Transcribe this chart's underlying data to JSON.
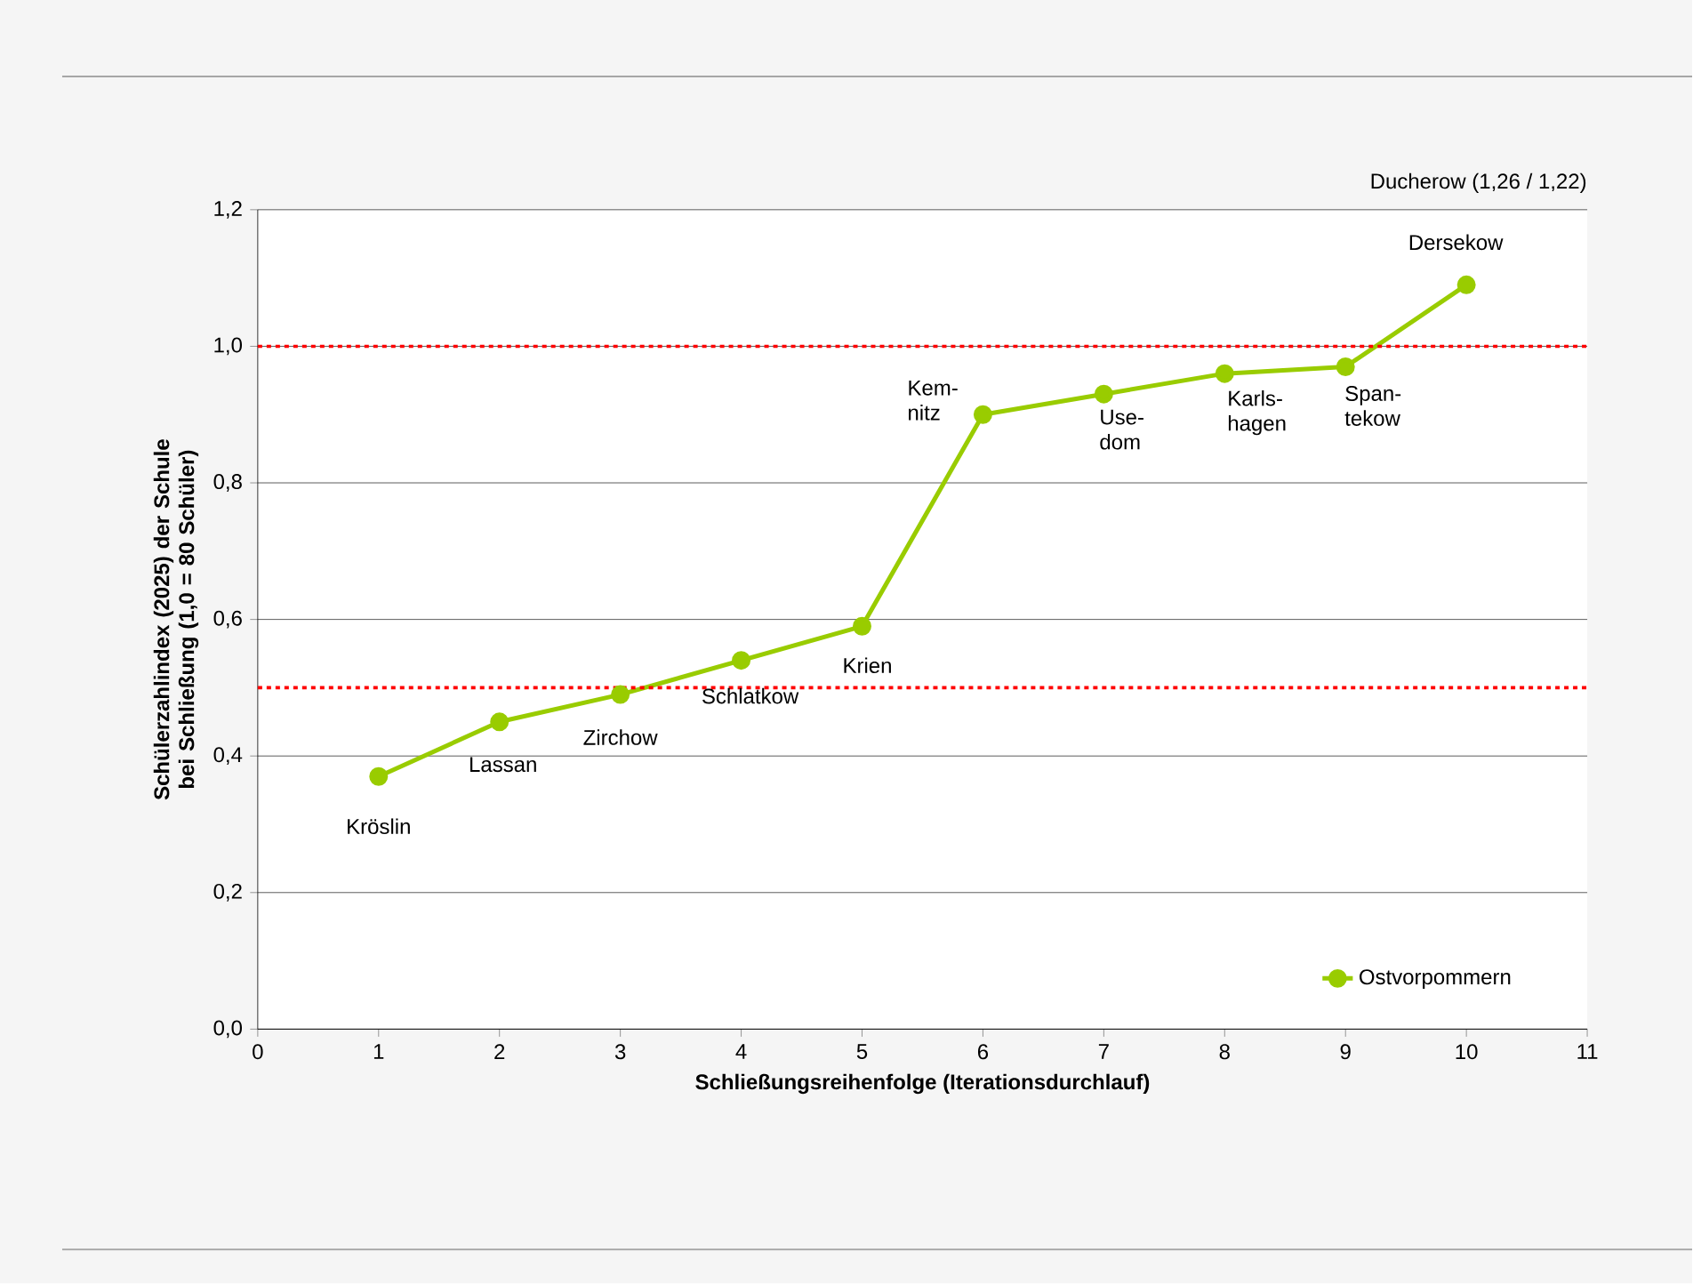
{
  "chart_data": {
    "type": "line",
    "xlabel": "Schließungsreihenfolge (Iterationsdurchlauf)",
    "ylabel": "Schülerzahlindex (2025) der Schule bei Schließung (1,0 = 80 Schüler)",
    "xlim": [
      0,
      11
    ],
    "xticks": [
      0,
      1,
      2,
      3,
      4,
      5,
      6,
      7,
      8,
      9,
      10,
      11
    ],
    "ylim": [
      0,
      1.2
    ],
    "yticks": [
      {
        "value": 0,
        "label": "0,0"
      },
      {
        "value": 0.2,
        "label": "0,2"
      },
      {
        "value": 0.4,
        "label": "0,4"
      },
      {
        "value": 0.6,
        "label": "0,6"
      },
      {
        "value": 0.8,
        "label": "0,8"
      },
      {
        "value": 1.0,
        "label": "1,0"
      },
      {
        "value": 1.2,
        "label": "1,2"
      }
    ],
    "x": [
      1,
      2,
      3,
      4,
      5,
      6,
      7,
      8,
      9,
      10
    ],
    "series": [
      {
        "name": "Ostvorpommern",
        "color": "#99cc00",
        "values": [
          0.37,
          0.45,
          0.49,
          0.54,
          0.59,
          0.9,
          0.93,
          0.96,
          0.97,
          1.09
        ]
      }
    ],
    "marker": "circle",
    "line_style": "solid",
    "grid": "y",
    "legend": "bottom right",
    "ref_lines": [
      {
        "axis": "y",
        "value": 1.0,
        "color": "#ff0000",
        "line_style": "dotted"
      },
      {
        "axis": "y",
        "value": 0.5,
        "color": "#ff0000",
        "line_style": "dotted"
      }
    ],
    "annotations": [
      {
        "text": "Kröslin",
        "x": 1,
        "y": 0.37
      },
      {
        "text": "Lassan",
        "x": 2,
        "y": 0.45
      },
      {
        "text": "Zirchow",
        "x": 3,
        "y": 0.49
      },
      {
        "text": "Schlatkow",
        "x": 4,
        "y": 0.54
      },
      {
        "text": "Krien",
        "x": 5,
        "y": 0.59
      },
      {
        "text": "Kem-nitz",
        "x": 6,
        "y": 0.9
      },
      {
        "text": "Use-dom",
        "x": 7,
        "y": 0.93
      },
      {
        "text": "Karls-hagen",
        "x": 8,
        "y": 0.96
      },
      {
        "text": "Span-tekow",
        "x": 9,
        "y": 0.97
      },
      {
        "text": "Dersekow",
        "x": 10,
        "y": 1.09
      },
      "Ducherow (1,26 / 1,22)"
    ]
  }
}
